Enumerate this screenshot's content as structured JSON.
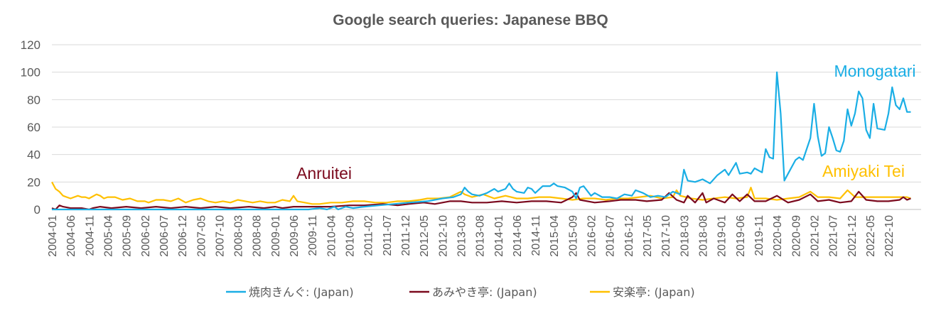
{
  "chart_data": {
    "type": "line",
    "title": "Google search queries: Japanese BBQ",
    "xlabel": "",
    "ylabel": "",
    "ylim": [
      0,
      120
    ],
    "yticks": [
      "0",
      "20",
      "40",
      "60",
      "80",
      "100",
      "120"
    ],
    "grid": "horizontal",
    "legend": "bottom",
    "x_start": "2004-01",
    "x_end": "2023-02",
    "x_tick_labels": [
      "2004-01",
      "2004-06",
      "2004-11",
      "2005-04",
      "2005-09",
      "2006-02",
      "2006-07",
      "2006-12",
      "2007-05",
      "2007-10",
      "2008-03",
      "2008-08",
      "2009-01",
      "2009-06",
      "2009-11",
      "2010-04",
      "2010-09",
      "2011-02",
      "2011-07",
      "2011-12",
      "2012-05",
      "2012-10",
      "2013-03",
      "2013-08",
      "2014-01",
      "2014-06",
      "2014-11",
      "2015-04",
      "2015-09",
      "2016-02",
      "2016-07",
      "2016-12",
      "2017-05",
      "2017-10",
      "2018-03",
      "2018-08",
      "2019-01",
      "2019-06",
      "2019-11",
      "2020-04",
      "2020-09",
      "2021-02",
      "2021-07",
      "2021-12",
      "2022-05",
      "2022-10"
    ],
    "series": [
      {
        "name": "焼肉きんぐ: (Japan)",
        "color": "#1aaee5",
        "points": [
          [
            "2004-01",
            0
          ],
          [
            "2009-10",
            0
          ],
          [
            "2010-01",
            1
          ],
          [
            "2010-03",
            0
          ],
          [
            "2010-05",
            2
          ],
          [
            "2010-06",
            0
          ],
          [
            "2010-08",
            2
          ],
          [
            "2010-10",
            1
          ],
          [
            "2011-01",
            2
          ],
          [
            "2011-05",
            3
          ],
          [
            "2011-09",
            4
          ],
          [
            "2012-01",
            5
          ],
          [
            "2012-06",
            6
          ],
          [
            "2012-10",
            8
          ],
          [
            "2013-01",
            9
          ],
          [
            "2013-03",
            11
          ],
          [
            "2013-04",
            16
          ],
          [
            "2013-05",
            13
          ],
          [
            "2013-06",
            11
          ],
          [
            "2013-08",
            10
          ],
          [
            "2013-10",
            12
          ],
          [
            "2013-12",
            15
          ],
          [
            "2014-01",
            13
          ],
          [
            "2014-03",
            15
          ],
          [
            "2014-04",
            19
          ],
          [
            "2014-05",
            15
          ],
          [
            "2014-06",
            13
          ],
          [
            "2014-08",
            12
          ],
          [
            "2014-09",
            16
          ],
          [
            "2014-10",
            15
          ],
          [
            "2014-11",
            12
          ],
          [
            "2015-01",
            17
          ],
          [
            "2015-03",
            17
          ],
          [
            "2015-04",
            19
          ],
          [
            "2015-05",
            17
          ],
          [
            "2015-07",
            16
          ],
          [
            "2015-09",
            13
          ],
          [
            "2015-10",
            8
          ],
          [
            "2015-11",
            16
          ],
          [
            "2015-12",
            17
          ],
          [
            "2016-02",
            10
          ],
          [
            "2016-03",
            12
          ],
          [
            "2016-05",
            9
          ],
          [
            "2016-07",
            9
          ],
          [
            "2016-09",
            8
          ],
          [
            "2016-11",
            11
          ],
          [
            "2017-01",
            10
          ],
          [
            "2017-02",
            14
          ],
          [
            "2017-04",
            12
          ],
          [
            "2017-06",
            9
          ],
          [
            "2017-08",
            10
          ],
          [
            "2017-10",
            9
          ],
          [
            "2017-12",
            13
          ],
          [
            "2018-02",
            11
          ],
          [
            "2018-03",
            29
          ],
          [
            "2018-04",
            21
          ],
          [
            "2018-06",
            20
          ],
          [
            "2018-08",
            22
          ],
          [
            "2018-10",
            19
          ],
          [
            "2018-12",
            25
          ],
          [
            "2019-02",
            29
          ],
          [
            "2019-03",
            25
          ],
          [
            "2019-05",
            34
          ],
          [
            "2019-06",
            26
          ],
          [
            "2019-08",
            27
          ],
          [
            "2019-09",
            26
          ],
          [
            "2019-10",
            30
          ],
          [
            "2019-12",
            27
          ],
          [
            "2020-01",
            44
          ],
          [
            "2020-02",
            38
          ],
          [
            "2020-03",
            37
          ],
          [
            "2020-04",
            100
          ],
          [
            "2020-05",
            70
          ],
          [
            "2020-06",
            21
          ],
          [
            "2020-07",
            26
          ],
          [
            "2020-09",
            36
          ],
          [
            "2020-10",
            38
          ],
          [
            "2020-11",
            36
          ],
          [
            "2021-01",
            52
          ],
          [
            "2021-02",
            77
          ],
          [
            "2021-03",
            53
          ],
          [
            "2021-04",
            39
          ],
          [
            "2021-05",
            41
          ],
          [
            "2021-06",
            60
          ],
          [
            "2021-07",
            52
          ],
          [
            "2021-08",
            43
          ],
          [
            "2021-09",
            42
          ],
          [
            "2021-10",
            50
          ],
          [
            "2021-11",
            73
          ],
          [
            "2021-12",
            61
          ],
          [
            "2022-01",
            70
          ],
          [
            "2022-02",
            86
          ],
          [
            "2022-03",
            81
          ],
          [
            "2022-04",
            58
          ],
          [
            "2022-05",
            52
          ],
          [
            "2022-06",
            77
          ],
          [
            "2022-07",
            59
          ],
          [
            "2022-09",
            58
          ],
          [
            "2022-10",
            70
          ],
          [
            "2022-11",
            89
          ],
          [
            "2022-12",
            76
          ],
          [
            "2023-01",
            73
          ],
          [
            "2023-02",
            81
          ],
          [
            "2023-03",
            71
          ],
          [
            "2023-04",
            71
          ]
        ]
      },
      {
        "name": "あみやき亭: (Japan)",
        "color": "#7b0a1e",
        "points": [
          [
            "2004-01",
            1
          ],
          [
            "2004-02",
            0
          ],
          [
            "2004-03",
            3
          ],
          [
            "2004-04",
            2
          ],
          [
            "2004-06",
            1
          ],
          [
            "2004-09",
            1
          ],
          [
            "2004-11",
            0
          ],
          [
            "2004-12",
            1
          ],
          [
            "2005-02",
            2
          ],
          [
            "2005-05",
            1
          ],
          [
            "2005-09",
            2
          ],
          [
            "2006-01",
            1
          ],
          [
            "2006-05",
            2
          ],
          [
            "2006-09",
            1
          ],
          [
            "2007-01",
            2
          ],
          [
            "2007-05",
            1
          ],
          [
            "2007-09",
            2
          ],
          [
            "2008-01",
            1
          ],
          [
            "2008-06",
            2
          ],
          [
            "2008-10",
            1
          ],
          [
            "2009-01",
            2
          ],
          [
            "2009-03",
            1
          ],
          [
            "2009-06",
            2
          ],
          [
            "2009-10",
            2
          ],
          [
            "2010-04",
            2
          ],
          [
            "2010-09",
            3
          ],
          [
            "2011-01",
            3
          ],
          [
            "2011-06",
            4
          ],
          [
            "2011-10",
            3
          ],
          [
            "2012-01",
            4
          ],
          [
            "2012-05",
            5
          ],
          [
            "2012-08",
            4
          ],
          [
            "2012-12",
            6
          ],
          [
            "2013-03",
            6
          ],
          [
            "2013-06",
            5
          ],
          [
            "2013-10",
            5
          ],
          [
            "2014-02",
            6
          ],
          [
            "2014-06",
            5
          ],
          [
            "2014-10",
            6
          ],
          [
            "2015-02",
            6
          ],
          [
            "2015-06",
            5
          ],
          [
            "2015-09",
            9
          ],
          [
            "2015-10",
            12
          ],
          [
            "2015-11",
            7
          ],
          [
            "2016-03",
            5
          ],
          [
            "2016-07",
            6
          ],
          [
            "2016-10",
            7
          ],
          [
            "2017-02",
            7
          ],
          [
            "2017-05",
            6
          ],
          [
            "2017-09",
            7
          ],
          [
            "2017-11",
            12
          ],
          [
            "2018-01",
            7
          ],
          [
            "2018-03",
            5
          ],
          [
            "2018-04",
            10
          ],
          [
            "2018-06",
            5
          ],
          [
            "2018-08",
            12
          ],
          [
            "2018-09",
            5
          ],
          [
            "2018-11",
            8
          ],
          [
            "2019-02",
            5
          ],
          [
            "2019-04",
            11
          ],
          [
            "2019-06",
            6
          ],
          [
            "2019-08",
            11
          ],
          [
            "2019-10",
            6
          ],
          [
            "2020-01",
            6
          ],
          [
            "2020-04",
            10
          ],
          [
            "2020-07",
            5
          ],
          [
            "2020-10",
            7
          ],
          [
            "2021-01",
            11
          ],
          [
            "2021-03",
            6
          ],
          [
            "2021-06",
            7
          ],
          [
            "2021-09",
            5
          ],
          [
            "2021-12",
            6
          ],
          [
            "2022-02",
            13
          ],
          [
            "2022-04",
            7
          ],
          [
            "2022-07",
            6
          ],
          [
            "2022-10",
            6
          ],
          [
            "2023-01",
            7
          ],
          [
            "2023-02",
            9
          ],
          [
            "2023-03",
            7
          ],
          [
            "2023-04",
            8
          ]
        ]
      },
      {
        "name": "安楽亭: (Japan)",
        "color": "#ffc000",
        "points": [
          [
            "2004-01",
            20
          ],
          [
            "2004-02",
            15
          ],
          [
            "2004-03",
            13
          ],
          [
            "2004-04",
            10
          ],
          [
            "2004-05",
            9
          ],
          [
            "2004-06",
            8
          ],
          [
            "2004-08",
            10
          ],
          [
            "2004-09",
            9
          ],
          [
            "2004-10",
            9
          ],
          [
            "2004-11",
            8
          ],
          [
            "2005-01",
            11
          ],
          [
            "2005-02",
            10
          ],
          [
            "2005-03",
            8
          ],
          [
            "2005-04",
            9
          ],
          [
            "2005-06",
            9
          ],
          [
            "2005-08",
            7
          ],
          [
            "2005-10",
            8
          ],
          [
            "2005-12",
            6
          ],
          [
            "2006-02",
            6
          ],
          [
            "2006-03",
            5
          ],
          [
            "2006-05",
            7
          ],
          [
            "2006-07",
            7
          ],
          [
            "2006-09",
            6
          ],
          [
            "2006-11",
            8
          ],
          [
            "2007-01",
            5
          ],
          [
            "2007-03",
            7
          ],
          [
            "2007-05",
            8
          ],
          [
            "2007-07",
            6
          ],
          [
            "2007-09",
            5
          ],
          [
            "2007-11",
            6
          ],
          [
            "2008-01",
            5
          ],
          [
            "2008-03",
            7
          ],
          [
            "2008-05",
            6
          ],
          [
            "2008-07",
            5
          ],
          [
            "2008-09",
            6
          ],
          [
            "2008-11",
            5
          ],
          [
            "2009-01",
            5
          ],
          [
            "2009-03",
            7
          ],
          [
            "2009-05",
            6
          ],
          [
            "2009-06",
            10
          ],
          [
            "2009-07",
            6
          ],
          [
            "2009-09",
            5
          ],
          [
            "2009-11",
            4
          ],
          [
            "2010-01",
            4
          ],
          [
            "2010-04",
            5
          ],
          [
            "2010-07",
            5
          ],
          [
            "2010-10",
            6
          ],
          [
            "2011-01",
            6
          ],
          [
            "2011-04",
            5
          ],
          [
            "2011-07",
            5
          ],
          [
            "2011-10",
            6
          ],
          [
            "2012-01",
            6
          ],
          [
            "2012-04",
            7
          ],
          [
            "2012-06",
            8
          ],
          [
            "2012-09",
            8
          ],
          [
            "2012-12",
            9
          ],
          [
            "2013-03",
            13
          ],
          [
            "2013-04",
            11
          ],
          [
            "2013-06",
            9
          ],
          [
            "2013-09",
            11
          ],
          [
            "2013-12",
            8
          ],
          [
            "2014-03",
            10
          ],
          [
            "2014-06",
            8
          ],
          [
            "2014-09",
            8
          ],
          [
            "2014-12",
            9
          ],
          [
            "2015-03",
            9
          ],
          [
            "2015-06",
            8
          ],
          [
            "2015-09",
            7
          ],
          [
            "2015-12",
            8
          ],
          [
            "2016-03",
            8
          ],
          [
            "2016-06",
            7
          ],
          [
            "2016-09",
            8
          ],
          [
            "2016-12",
            8
          ],
          [
            "2017-03",
            9
          ],
          [
            "2017-06",
            10
          ],
          [
            "2017-09",
            8
          ],
          [
            "2017-12",
            9
          ],
          [
            "2018-01",
            14
          ],
          [
            "2018-02",
            10
          ],
          [
            "2018-05",
            8
          ],
          [
            "2018-08",
            7
          ],
          [
            "2018-11",
            8
          ],
          [
            "2019-02",
            9
          ],
          [
            "2019-05",
            8
          ],
          [
            "2019-08",
            9
          ],
          [
            "2019-09",
            16
          ],
          [
            "2019-10",
            8
          ],
          [
            "2020-01",
            8
          ],
          [
            "2020-04",
            7
          ],
          [
            "2020-07",
            8
          ],
          [
            "2020-10",
            9
          ],
          [
            "2021-01",
            13
          ],
          [
            "2021-03",
            9
          ],
          [
            "2021-06",
            9
          ],
          [
            "2021-09",
            8
          ],
          [
            "2021-11",
            14
          ],
          [
            "2022-01",
            9
          ],
          [
            "2022-04",
            9
          ],
          [
            "2022-07",
            9
          ],
          [
            "2022-10",
            9
          ],
          [
            "2023-01",
            9
          ],
          [
            "2023-03",
            9
          ],
          [
            "2023-04",
            8
          ]
        ]
      }
    ],
    "annotations": [
      {
        "text": "Monogatari",
        "series": 0,
        "color": "#1aaee5"
      },
      {
        "text": "Anruitei",
        "series": 1,
        "color": "#7b0a1e"
      },
      {
        "text": "Amiyaki Tei",
        "series": 2,
        "color": "#ffc000"
      }
    ]
  }
}
